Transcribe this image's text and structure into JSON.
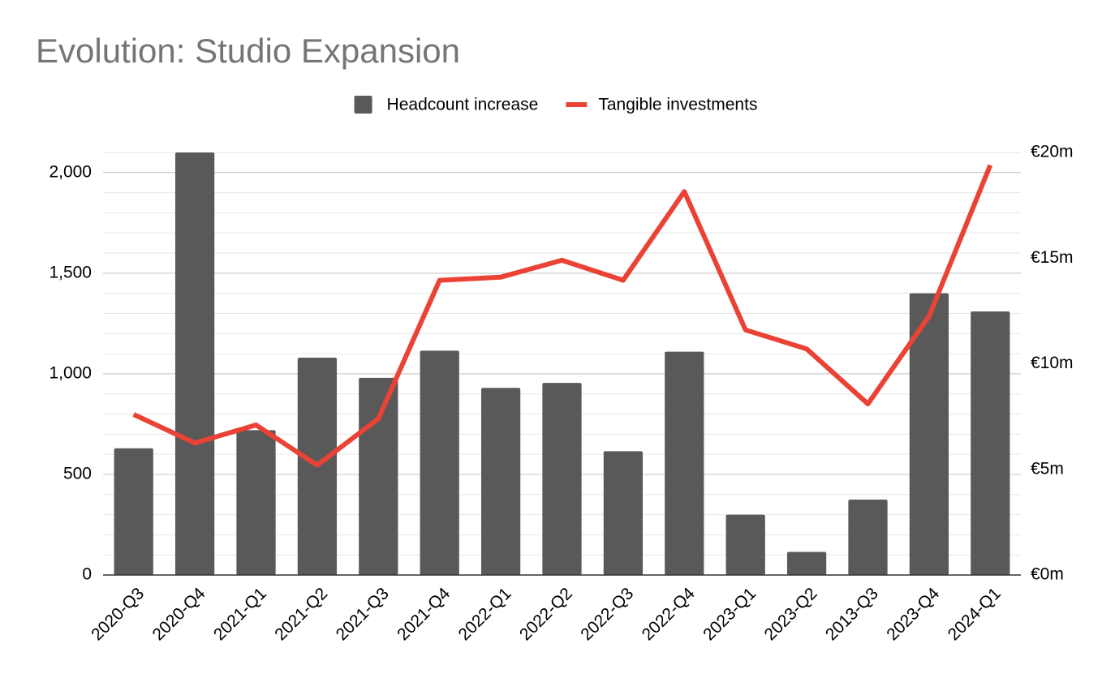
{
  "chart_data": {
    "type": "bar_line",
    "title": "Evolution: Studio Expansion",
    "categories": [
      "2020-Q3",
      "2020-Q4",
      "2021-Q1",
      "2021-Q2",
      "2021-Q3",
      "2021-Q4",
      "2022-Q1",
      "2022-Q2",
      "2022-Q3",
      "2022-Q4",
      "2023-Q1",
      "2023-Q2",
      "2013-Q3",
      "2023-Q4",
      "2024-Q1"
    ],
    "series": [
      {
        "name": "Headcount increase",
        "type": "bar",
        "color": "#595959",
        "values": [
          630,
          2100,
          720,
          1080,
          980,
          1115,
          930,
          955,
          615,
          1110,
          300,
          115,
          375,
          1400,
          1310
        ]
      },
      {
        "name": "Tangible investments",
        "type": "line",
        "axis": "y2",
        "color": "#ea4335",
        "values": [
          7.6,
          6.25,
          7.1,
          5.2,
          7.4,
          13.95,
          14.1,
          14.9,
          13.95,
          18.15,
          11.6,
          10.7,
          8.1,
          12.25,
          19.4
        ]
      }
    ],
    "ylim": [
      0,
      2100
    ],
    "yticks": [
      0,
      500,
      {
        "value": 1000,
        "label": "1,000"
      },
      {
        "value": 1500,
        "label": "1,500"
      },
      {
        "value": 2000,
        "label": "2,000"
      }
    ],
    "y2lim": [
      0,
      20
    ],
    "y2ticks": [
      {
        "value": 0,
        "label": "€0m"
      },
      {
        "value": 5,
        "label": "€5m"
      },
      {
        "value": 10,
        "label": "€10m"
      },
      {
        "value": 15,
        "label": "€15m"
      },
      {
        "value": 20,
        "label": "€20m"
      }
    ],
    "grid": true,
    "minor_grid": true,
    "legend": "top"
  }
}
